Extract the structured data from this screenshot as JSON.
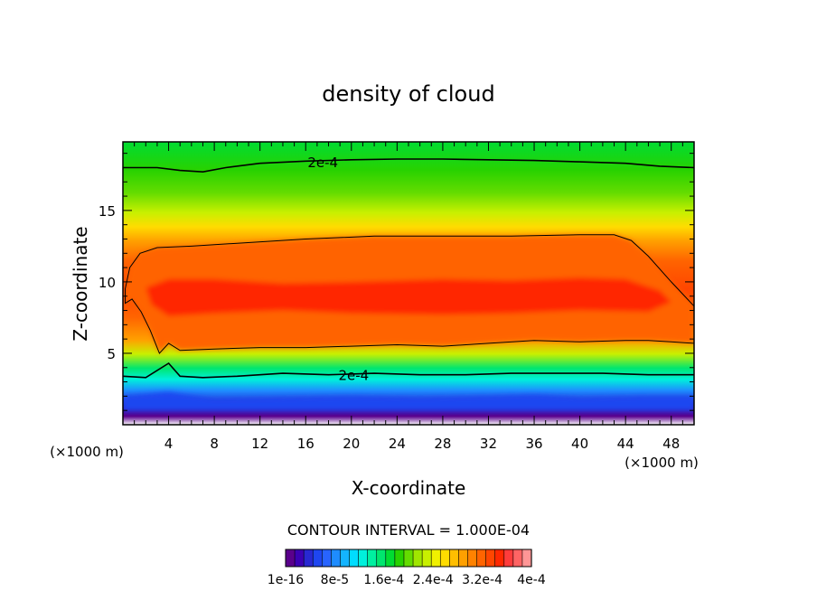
{
  "chart_data": {
    "type": "heatmap",
    "title": "density of cloud",
    "xlabel": "X-coordinate",
    "ylabel": "Z-coordinate",
    "x_unit_label": "(×1000 m)",
    "x_unit_label_left": "(×1000 m)",
    "xlim": [
      0,
      50
    ],
    "ylim": [
      0,
      19.8
    ],
    "x_ticks": [
      4,
      8,
      12,
      16,
      20,
      24,
      28,
      32,
      36,
      40,
      44,
      48
    ],
    "x_minor_step": 1,
    "y_ticks": [
      5,
      10,
      15
    ],
    "y_minor_step": 1,
    "contour_interval_text": "CONTOUR INTERVAL = 1.000E-04",
    "contour_labels": [
      {
        "text": "2e-4",
        "x": 17.5,
        "y": 18.35
      },
      {
        "text": "2e-4",
        "x": 20.2,
        "y": 3.45
      }
    ],
    "contour_level_2e4": {
      "upper": {
        "x": [
          0,
          3,
          5,
          7,
          9,
          12,
          16,
          20,
          24,
          28,
          32,
          36,
          40,
          44,
          47,
          50
        ],
        "y": [
          18.0,
          18.0,
          17.8,
          17.7,
          18.0,
          18.3,
          18.45,
          18.55,
          18.6,
          18.6,
          18.55,
          18.5,
          18.4,
          18.3,
          18.1,
          18.0
        ]
      },
      "lower": {
        "x": [
          0,
          2,
          4,
          5,
          7,
          10,
          14,
          18,
          22,
          26,
          30,
          34,
          38,
          42,
          46,
          50
        ],
        "y": [
          3.4,
          3.3,
          4.3,
          3.4,
          3.3,
          3.4,
          3.6,
          3.5,
          3.6,
          3.5,
          3.5,
          3.6,
          3.6,
          3.6,
          3.5,
          3.5
        ]
      }
    },
    "contour_level_1e4": {
      "x": [
        0.2,
        0.6,
        1.5,
        3,
        6,
        10,
        16,
        22,
        28,
        34,
        40,
        43,
        44.5,
        46,
        48,
        50,
        50,
        48,
        46,
        44,
        40,
        36,
        32,
        28,
        24,
        20,
        16,
        12,
        8,
        5,
        4,
        3.2,
        2.4,
        1.6,
        0.8,
        0.2
      ],
      "y": [
        9.5,
        11.0,
        12.0,
        12.4,
        12.5,
        12.7,
        13.0,
        13.2,
        13.2,
        13.2,
        13.3,
        13.3,
        12.9,
        11.8,
        10.0,
        8.3,
        5.7,
        5.8,
        5.9,
        5.9,
        5.8,
        5.9,
        5.7,
        5.5,
        5.6,
        5.5,
        5.4,
        5.4,
        5.3,
        5.2,
        5.7,
        5.0,
        6.6,
        7.9,
        8.8,
        8.5
      ]
    },
    "colorbar": {
      "levels": 27,
      "min": 1e-16,
      "max": 0.0004,
      "tick_labels": [
        "1e-16",
        "8e-5",
        "1.6e-4",
        "2.4e-4",
        "3.2e-4",
        "4e-4"
      ],
      "colors": [
        "#5a008c",
        "#3c00b4",
        "#2828d2",
        "#1e46f0",
        "#2864ff",
        "#1e8cff",
        "#14b4ff",
        "#00dcff",
        "#00f0dc",
        "#00f0a0",
        "#00e66e",
        "#00dc32",
        "#28d200",
        "#64dc00",
        "#a0e600",
        "#c8f000",
        "#f0f000",
        "#ffdc00",
        "#ffbe00",
        "#ffa000",
        "#ff8200",
        "#ff6400",
        "#ff4600",
        "#ff2800",
        "#ff3c3c",
        "#ff6464",
        "#ff9696"
      ]
    }
  }
}
